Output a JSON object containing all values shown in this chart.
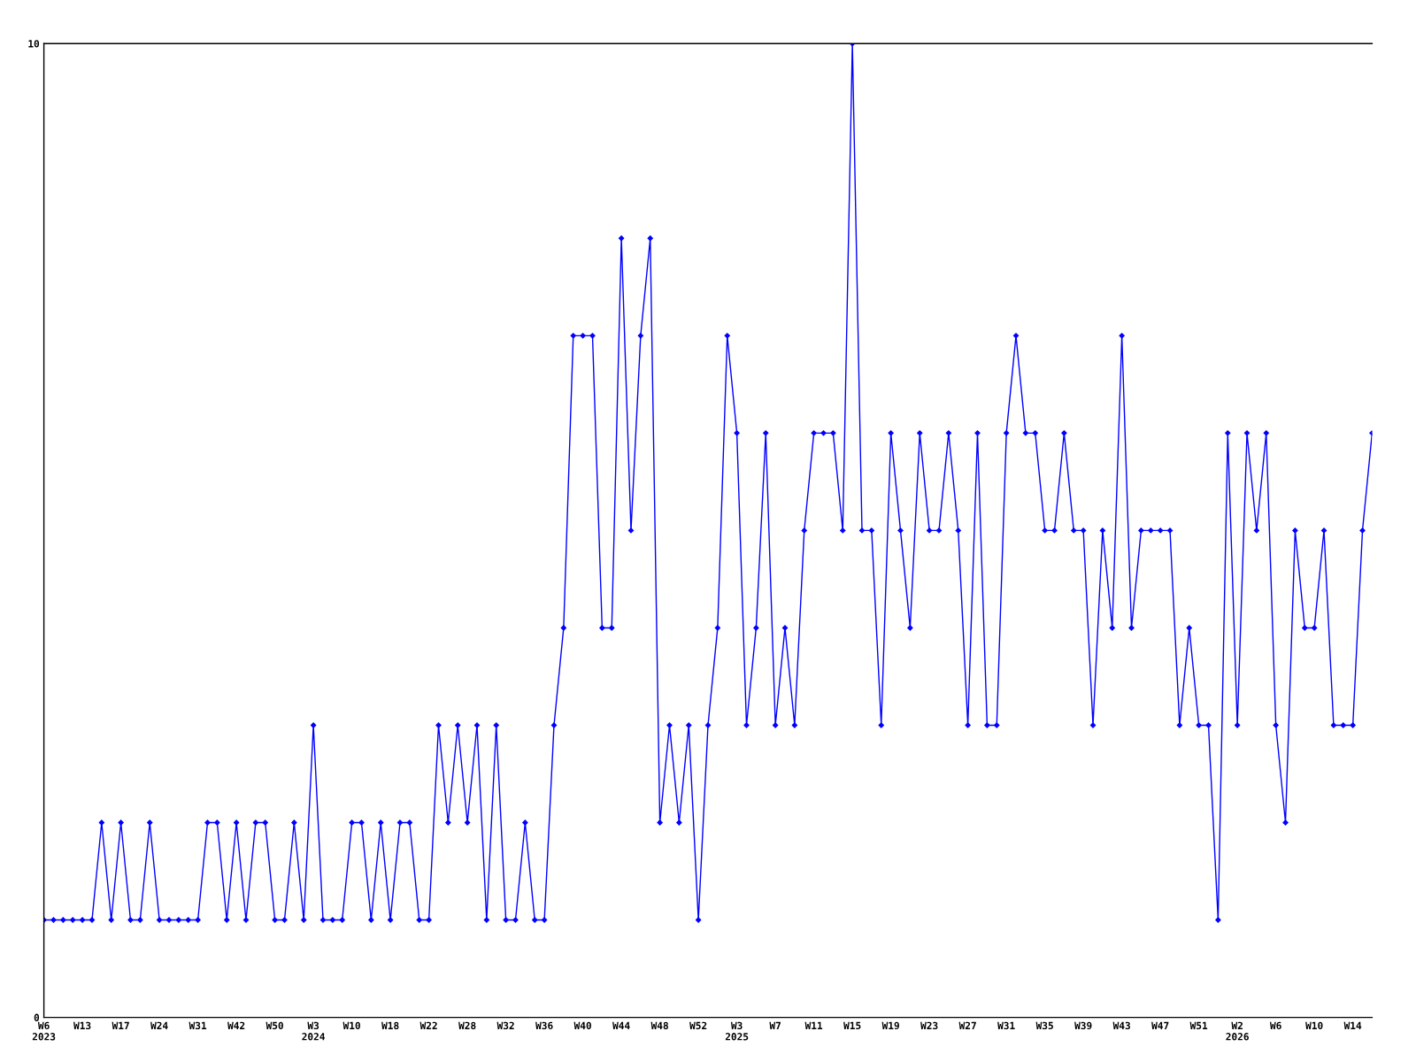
{
  "chart_data": {
    "type": "line",
    "categories": [
      "W6\n2023",
      null,
      null,
      null,
      "W13",
      null,
      null,
      null,
      "W17",
      null,
      null,
      null,
      "W24",
      null,
      null,
      null,
      "W31",
      null,
      null,
      null,
      "W42",
      null,
      null,
      null,
      "W50",
      null,
      null,
      null,
      "W3\n2024",
      null,
      null,
      null,
      "W10",
      null,
      null,
      null,
      "W18",
      null,
      null,
      null,
      "W22",
      null,
      null,
      null,
      "W28",
      null,
      null,
      null,
      "W32",
      null,
      null,
      null,
      "W36",
      null,
      null,
      null,
      "W40",
      null,
      null,
      null,
      "W44",
      null,
      null,
      null,
      "W48",
      null,
      null,
      null,
      "W52",
      null,
      null,
      null,
      "W3\n2025",
      null,
      null,
      null,
      "W7",
      null,
      null,
      null,
      "W11",
      null,
      null,
      null,
      "W15",
      null,
      null,
      null,
      "W19",
      null,
      null,
      null,
      "W23",
      null,
      null,
      null,
      "W27",
      null,
      null,
      null,
      "W31",
      null,
      null,
      null,
      "W35",
      null,
      null,
      null,
      "W39",
      null,
      null,
      null,
      "W43",
      null,
      null,
      null,
      "W47",
      null,
      null,
      null,
      "W51",
      null,
      null,
      null,
      "W2\n2026",
      null,
      null,
      null,
      "W6",
      null,
      null,
      null,
      "W10",
      null,
      null,
      null,
      "W14",
      null,
      null
    ],
    "series": [
      {
        "color": "#0000ff",
        "values": [
          1,
          1,
          1,
          1,
          1,
          1,
          2,
          1,
          2,
          1,
          1,
          2,
          1,
          1,
          1,
          1,
          1,
          2,
          2,
          1,
          2,
          1,
          2,
          2,
          1,
          1,
          2,
          1,
          3,
          1,
          1,
          1,
          2,
          2,
          1,
          2,
          1,
          2,
          2,
          1,
          1,
          3,
          2,
          3,
          2,
          3,
          1,
          3,
          1,
          1,
          2,
          1,
          1,
          3,
          4,
          7,
          7,
          7,
          4,
          4,
          8,
          5,
          7,
          8,
          2,
          3,
          2,
          3,
          1,
          3,
          4,
          7,
          6,
          3,
          4,
          6,
          3,
          4,
          3,
          5,
          6,
          6,
          6,
          5,
          10,
          5,
          5,
          3,
          6,
          5,
          4,
          6,
          5,
          5,
          6,
          5,
          3,
          6,
          3,
          3,
          6,
          7,
          6,
          6,
          5,
          5,
          6,
          5,
          5,
          3,
          5,
          4,
          7,
          4,
          5,
          5,
          5,
          5,
          3,
          4,
          3,
          3,
          1,
          6,
          3,
          6,
          5,
          6,
          3,
          2,
          5,
          4,
          4,
          5,
          3,
          3,
          3,
          5,
          6
        ]
      }
    ],
    "ylim": [
      0,
      10
    ],
    "yticks": [
      0,
      10
    ],
    "grid": false,
    "marker": "diamond",
    "line_style": "solid"
  }
}
